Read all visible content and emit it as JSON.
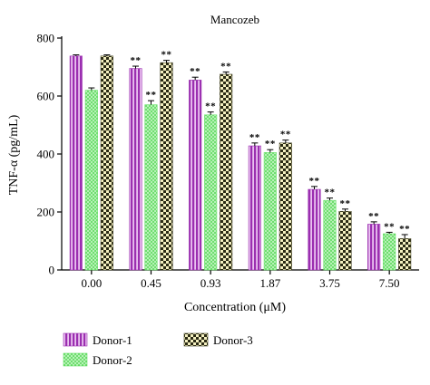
{
  "chart_data": {
    "type": "bar",
    "title": "Mancozeb",
    "xlabel": "Concentration (μM)",
    "ylabel": "TNF-α (pg/mL)",
    "ylim": [
      0,
      800
    ],
    "yticks": [
      "0",
      "200",
      "400",
      "600",
      "800"
    ],
    "categories": [
      "0.00",
      "0.45",
      "0.93",
      "1.87",
      "3.75",
      "7.50"
    ],
    "series": [
      {
        "name": "Donor-1",
        "color": "#9b2fb0",
        "pattern": "vertical-stripes",
        "values": [
          738,
          695,
          655,
          428,
          278,
          158
        ],
        "errors": [
          4,
          8,
          10,
          10,
          10,
          8
        ],
        "significance": [
          "",
          "**",
          "**",
          "**",
          "**",
          "**"
        ]
      },
      {
        "name": "Donor-2",
        "color": "#66e066",
        "pattern": "dots",
        "values": [
          620,
          570,
          535,
          405,
          240,
          125
        ],
        "errors": [
          8,
          14,
          10,
          10,
          8,
          5
        ],
        "significance": [
          "",
          "**",
          "**",
          "**",
          "**",
          "**"
        ]
      },
      {
        "name": "Donor-3",
        "color": "#3a3a1a",
        "pattern": "checkerboard",
        "values": [
          738,
          715,
          675,
          438,
          202,
          108
        ],
        "errors": [
          4,
          8,
          8,
          10,
          8,
          14
        ],
        "significance": [
          "",
          "**",
          "**",
          "**",
          "**",
          "**"
        ]
      }
    ],
    "legend_position": "bottom"
  }
}
